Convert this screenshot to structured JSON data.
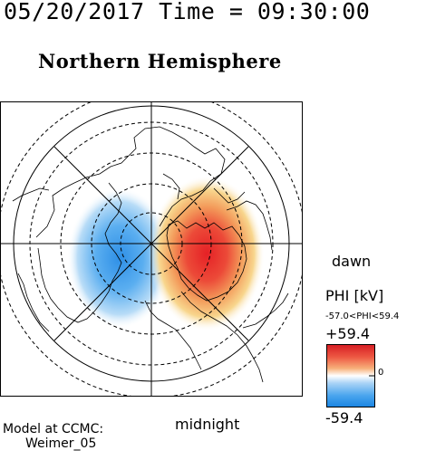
{
  "header": {
    "datetime": "05/20/2017 Time = 09:30:00",
    "title": "Northern Hemisphere"
  },
  "map": {
    "dawn_label": "dawn",
    "midnight_label": "midnight",
    "projection": "polar",
    "contour_style": "dashed",
    "colors": {
      "positive": "#e8262a",
      "negative": "#3a9ae8",
      "zero": "#ffffff"
    }
  },
  "colorbar": {
    "title": "PHI [kV]",
    "range_text": "-57.0<PHI<59.4",
    "max_label": "+59.4",
    "min_label": "-59.4",
    "zero_label": "0"
  },
  "footer": {
    "model_line": "Model at CCMC:",
    "model_name": "Weimer_05"
  }
}
